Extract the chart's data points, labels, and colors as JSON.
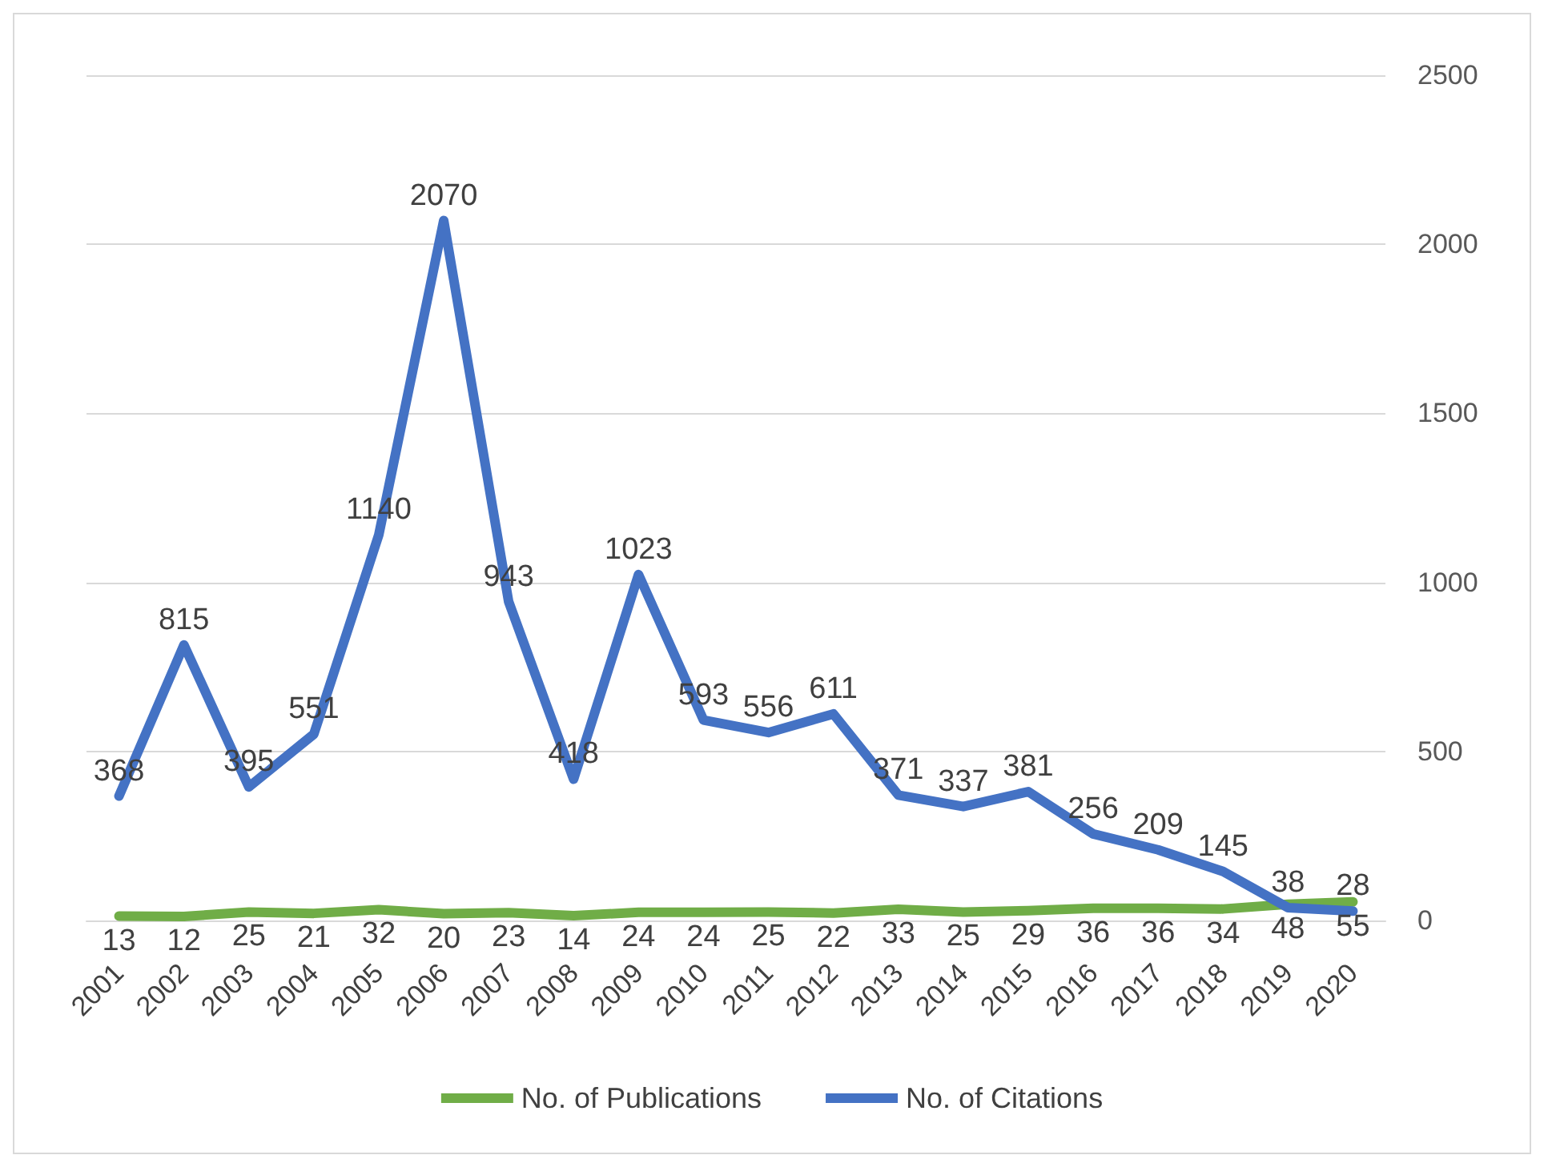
{
  "chart_data": {
    "type": "line",
    "categories": [
      "2001",
      "2002",
      "2003",
      "2004",
      "2005",
      "2006",
      "2007",
      "2008",
      "2009",
      "2010",
      "2011",
      "2012",
      "2013",
      "2014",
      "2015",
      "2016",
      "2017",
      "2018",
      "2019",
      "2020"
    ],
    "series": [
      {
        "name": "No. of Publications",
        "color": "#70ad47",
        "axis": "y2",
        "values": [
          13,
          12,
          25,
          21,
          32,
          20,
          23,
          14,
          24,
          24,
          25,
          22,
          33,
          25,
          29,
          36,
          36,
          34,
          48,
          55
        ]
      },
      {
        "name": "No. of Citations",
        "color": "#4472c4",
        "axis": "y2",
        "values": [
          368,
          815,
          395,
          551,
          1140,
          2070,
          943,
          418,
          1023,
          593,
          556,
          611,
          371,
          337,
          381,
          256,
          209,
          145,
          38,
          28
        ]
      }
    ],
    "y2lim": [
      0,
      2500
    ],
    "y2ticks": [
      0,
      500,
      1000,
      1500,
      2000,
      2500
    ],
    "grid": "y",
    "legend": "bottom",
    "data_labels": true,
    "marker": "none"
  }
}
